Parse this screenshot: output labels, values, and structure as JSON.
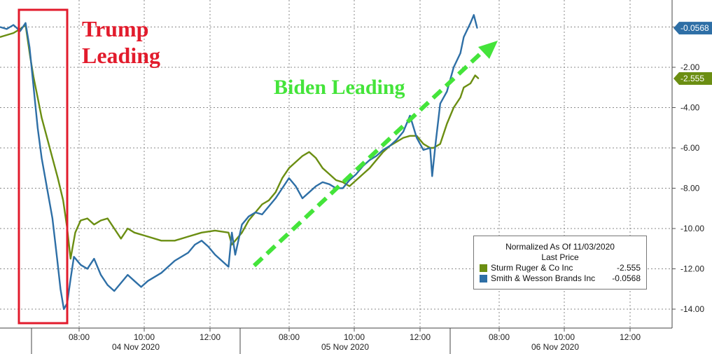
{
  "chart_data": {
    "type": "line",
    "ylim": [
      -15,
      1
    ],
    "y_ticks": [
      -2,
      -4,
      -6,
      -8,
      -10,
      -12,
      -14
    ],
    "y_tick_labels": [
      "-2.00",
      "-4.00",
      "-6.00",
      "-8.00",
      "-10.00",
      "-12.00",
      "-14.00"
    ],
    "x_ticks": [
      "08:00",
      "10:00",
      "12:00",
      "08:00",
      "10:00",
      "12:00",
      "08:00",
      "10:00",
      "12:00"
    ],
    "dates": [
      "04 Nov 2020",
      "05 Nov 2020",
      "06 Nov 2020"
    ],
    "grid": true,
    "legend": {
      "title": "Normalized As Of 11/03/2020",
      "subtitle": "Last Price",
      "placement": "bottom-right"
    },
    "series": [
      {
        "name": "Sturm Ruger & Co Inc",
        "last": "-2.555",
        "color": "#6b8e12",
        "points": [
          [
            0.0,
            -0.5
          ],
          [
            0.01,
            -0.4
          ],
          [
            0.02,
            -0.3
          ],
          [
            0.03,
            -0.1
          ],
          [
            0.038,
            0.1
          ],
          [
            0.045,
            -1.5
          ],
          [
            0.05,
            -2.5
          ],
          [
            0.056,
            -3.5
          ],
          [
            0.062,
            -4.5
          ],
          [
            0.07,
            -5.5
          ],
          [
            0.078,
            -6.5
          ],
          [
            0.086,
            -7.5
          ],
          [
            0.094,
            -8.6
          ],
          [
            0.1,
            -10.0
          ],
          [
            0.105,
            -11.5
          ],
          [
            0.112,
            -10.2
          ],
          [
            0.12,
            -9.6
          ],
          [
            0.13,
            -9.5
          ],
          [
            0.14,
            -9.8
          ],
          [
            0.15,
            -9.6
          ],
          [
            0.16,
            -9.5
          ],
          [
            0.17,
            -10.0
          ],
          [
            0.18,
            -10.5
          ],
          [
            0.19,
            -10.0
          ],
          [
            0.2,
            -10.2
          ],
          [
            0.22,
            -10.4
          ],
          [
            0.24,
            -10.6
          ],
          [
            0.26,
            -10.6
          ],
          [
            0.28,
            -10.4
          ],
          [
            0.3,
            -10.2
          ],
          [
            0.32,
            -10.1
          ],
          [
            0.34,
            -10.2
          ],
          [
            0.345,
            -10.8
          ],
          [
            0.35,
            -10.6
          ],
          [
            0.36,
            -10.2
          ],
          [
            0.37,
            -9.6
          ],
          [
            0.38,
            -9.2
          ],
          [
            0.39,
            -8.8
          ],
          [
            0.4,
            -8.6
          ],
          [
            0.41,
            -8.2
          ],
          [
            0.42,
            -7.5
          ],
          [
            0.43,
            -7.0
          ],
          [
            0.44,
            -6.7
          ],
          [
            0.45,
            -6.4
          ],
          [
            0.46,
            -6.2
          ],
          [
            0.47,
            -6.5
          ],
          [
            0.48,
            -7.0
          ],
          [
            0.49,
            -7.3
          ],
          [
            0.5,
            -7.6
          ],
          [
            0.51,
            -7.7
          ],
          [
            0.52,
            -7.9
          ],
          [
            0.53,
            -7.6
          ],
          [
            0.54,
            -7.3
          ],
          [
            0.55,
            -7.0
          ],
          [
            0.56,
            -6.6
          ],
          [
            0.57,
            -6.2
          ],
          [
            0.58,
            -5.9
          ],
          [
            0.59,
            -5.7
          ],
          [
            0.6,
            -5.5
          ],
          [
            0.61,
            -5.4
          ],
          [
            0.62,
            -5.4
          ],
          [
            0.63,
            -5.8
          ],
          [
            0.64,
            -6.0
          ],
          [
            0.645,
            -6.0
          ],
          [
            0.655,
            -5.8
          ],
          [
            0.665,
            -4.8
          ],
          [
            0.675,
            -4.0
          ],
          [
            0.685,
            -3.5
          ],
          [
            0.69,
            -3.0
          ],
          [
            0.7,
            -2.8
          ],
          [
            0.707,
            -2.4
          ],
          [
            0.712,
            -2.555
          ]
        ]
      },
      {
        "name": "Smith & Wesson Brands Inc",
        "last": "-0.0568",
        "color": "#2e6fa6",
        "points": [
          [
            0.0,
            0.0
          ],
          [
            0.01,
            -0.1
          ],
          [
            0.02,
            0.1
          ],
          [
            0.03,
            -0.2
          ],
          [
            0.038,
            0.2
          ],
          [
            0.044,
            -1.0
          ],
          [
            0.05,
            -3.0
          ],
          [
            0.056,
            -5.0
          ],
          [
            0.062,
            -6.5
          ],
          [
            0.07,
            -8.0
          ],
          [
            0.078,
            -9.5
          ],
          [
            0.085,
            -11.5
          ],
          [
            0.09,
            -13.0
          ],
          [
            0.095,
            -14.0
          ],
          [
            0.1,
            -13.7
          ],
          [
            0.105,
            -12.5
          ],
          [
            0.11,
            -11.4
          ],
          [
            0.12,
            -11.8
          ],
          [
            0.13,
            -12.0
          ],
          [
            0.14,
            -11.5
          ],
          [
            0.15,
            -12.3
          ],
          [
            0.16,
            -12.8
          ],
          [
            0.17,
            -13.1
          ],
          [
            0.18,
            -12.7
          ],
          [
            0.19,
            -12.3
          ],
          [
            0.2,
            -12.6
          ],
          [
            0.21,
            -12.9
          ],
          [
            0.22,
            -12.6
          ],
          [
            0.24,
            -12.2
          ],
          [
            0.26,
            -11.6
          ],
          [
            0.28,
            -11.2
          ],
          [
            0.29,
            -10.8
          ],
          [
            0.3,
            -10.6
          ],
          [
            0.31,
            -10.9
          ],
          [
            0.32,
            -11.3
          ],
          [
            0.33,
            -11.6
          ],
          [
            0.34,
            -11.9
          ],
          [
            0.345,
            -10.2
          ],
          [
            0.35,
            -11.3
          ],
          [
            0.36,
            -9.8
          ],
          [
            0.37,
            -9.4
          ],
          [
            0.38,
            -9.2
          ],
          [
            0.39,
            -9.3
          ],
          [
            0.4,
            -8.9
          ],
          [
            0.41,
            -8.5
          ],
          [
            0.42,
            -8.0
          ],
          [
            0.43,
            -7.5
          ],
          [
            0.44,
            -7.9
          ],
          [
            0.45,
            -8.5
          ],
          [
            0.46,
            -8.2
          ],
          [
            0.47,
            -7.9
          ],
          [
            0.48,
            -7.7
          ],
          [
            0.49,
            -7.8
          ],
          [
            0.5,
            -8.0
          ],
          [
            0.51,
            -8.0
          ],
          [
            0.52,
            -7.6
          ],
          [
            0.53,
            -7.3
          ],
          [
            0.54,
            -6.9
          ],
          [
            0.55,
            -6.6
          ],
          [
            0.56,
            -6.4
          ],
          [
            0.57,
            -6.1
          ],
          [
            0.58,
            -5.9
          ],
          [
            0.59,
            -5.6
          ],
          [
            0.6,
            -5.2
          ],
          [
            0.61,
            -4.4
          ],
          [
            0.62,
            -5.5
          ],
          [
            0.63,
            -6.1
          ],
          [
            0.64,
            -6.0
          ],
          [
            0.643,
            -7.4
          ],
          [
            0.648,
            -5.8
          ],
          [
            0.655,
            -3.8
          ],
          [
            0.665,
            -3.2
          ],
          [
            0.675,
            -2.0
          ],
          [
            0.685,
            -1.3
          ],
          [
            0.69,
            -0.5
          ],
          [
            0.7,
            0.2
          ],
          [
            0.705,
            0.6
          ],
          [
            0.71,
            -0.0568
          ]
        ]
      }
    ],
    "annotations": [
      {
        "text_lines": [
          "Trump",
          "Leading"
        ],
        "color": "#e21b2c"
      },
      {
        "text": "Biden Leading",
        "color": "#44e43a"
      }
    ]
  }
}
